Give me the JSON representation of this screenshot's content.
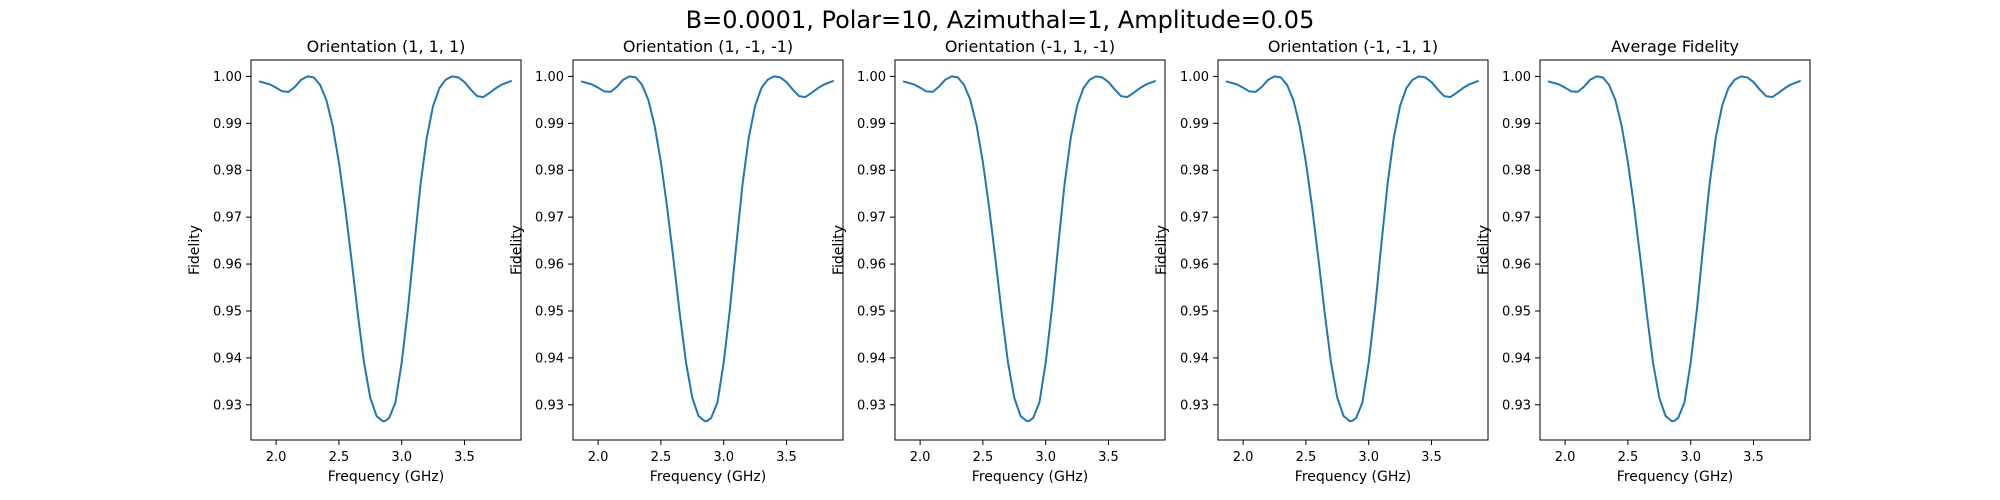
{
  "figure": {
    "suptitle": "B=0.0001, Polar=10, Azimuthal=1, Amplitude=0.05"
  },
  "chart_data": [
    {
      "type": "line",
      "title": "Orientation (1, 1, 1)",
      "xlabel": "Frequency (GHz)",
      "ylabel": "Fidelity",
      "xlim": [
        1.8,
        3.95
      ],
      "ylim": [
        0.9225,
        1.0035
      ],
      "xticks": [
        "2.0",
        "2.5",
        "3.0",
        "3.5"
      ],
      "yticks": [
        "0.93",
        "0.94",
        "0.95",
        "0.96",
        "0.97",
        "0.98",
        "0.99",
        "1.00"
      ],
      "grid": false,
      "color": "#1f77b4",
      "x": [
        1.87,
        1.95,
        2.0,
        2.05,
        2.1,
        2.15,
        2.2,
        2.25,
        2.3,
        2.35,
        2.4,
        2.45,
        2.5,
        2.55,
        2.6,
        2.65,
        2.7,
        2.75,
        2.8,
        2.85,
        2.87,
        2.9,
        2.95,
        3.0,
        3.05,
        3.1,
        3.15,
        3.2,
        3.25,
        3.3,
        3.35,
        3.4,
        3.45,
        3.5,
        3.55,
        3.6,
        3.65,
        3.7,
        3.75,
        3.8,
        3.87
      ],
      "y": [
        0.9989,
        0.9983,
        0.9976,
        0.9968,
        0.9967,
        0.9978,
        0.9993,
        1.0,
        0.9998,
        0.9982,
        0.995,
        0.9895,
        0.9817,
        0.972,
        0.961,
        0.9495,
        0.939,
        0.9315,
        0.9276,
        0.9265,
        0.9266,
        0.9272,
        0.9305,
        0.939,
        0.9505,
        0.964,
        0.977,
        0.987,
        0.9937,
        0.9975,
        0.9993,
        1.0,
        0.9998,
        0.9988,
        0.9972,
        0.9958,
        0.9956,
        0.9965,
        0.9975,
        0.9983,
        0.999
      ]
    },
    {
      "type": "line",
      "title": "Orientation (1, -1, -1)",
      "xlabel": "Frequency (GHz)",
      "ylabel": "Fidelity",
      "xlim": [
        1.8,
        3.95
      ],
      "ylim": [
        0.9225,
        1.0035
      ],
      "xticks": [
        "2.0",
        "2.5",
        "3.0",
        "3.5"
      ],
      "yticks": [
        "0.93",
        "0.94",
        "0.95",
        "0.96",
        "0.97",
        "0.98",
        "0.99",
        "1.00"
      ],
      "grid": false,
      "color": "#1f77b4",
      "x": [
        1.87,
        1.95,
        2.0,
        2.05,
        2.1,
        2.15,
        2.2,
        2.25,
        2.3,
        2.35,
        2.4,
        2.45,
        2.5,
        2.55,
        2.6,
        2.65,
        2.7,
        2.75,
        2.8,
        2.85,
        2.87,
        2.9,
        2.95,
        3.0,
        3.05,
        3.1,
        3.15,
        3.2,
        3.25,
        3.3,
        3.35,
        3.4,
        3.45,
        3.5,
        3.55,
        3.6,
        3.65,
        3.7,
        3.75,
        3.8,
        3.87
      ],
      "y": [
        0.9989,
        0.9983,
        0.9976,
        0.9968,
        0.9967,
        0.9978,
        0.9993,
        1.0,
        0.9998,
        0.9982,
        0.995,
        0.9895,
        0.9817,
        0.972,
        0.961,
        0.9495,
        0.939,
        0.9315,
        0.9276,
        0.9265,
        0.9266,
        0.9272,
        0.9305,
        0.939,
        0.9505,
        0.964,
        0.977,
        0.987,
        0.9937,
        0.9975,
        0.9993,
        1.0,
        0.9998,
        0.9988,
        0.9972,
        0.9958,
        0.9956,
        0.9965,
        0.9975,
        0.9983,
        0.999
      ]
    },
    {
      "type": "line",
      "title": "Orientation (-1, 1, -1)",
      "xlabel": "Frequency (GHz)",
      "ylabel": "Fidelity",
      "xlim": [
        1.8,
        3.95
      ],
      "ylim": [
        0.9225,
        1.0035
      ],
      "xticks": [
        "2.0",
        "2.5",
        "3.0",
        "3.5"
      ],
      "yticks": [
        "0.93",
        "0.94",
        "0.95",
        "0.96",
        "0.97",
        "0.98",
        "0.99",
        "1.00"
      ],
      "grid": false,
      "color": "#1f77b4",
      "x": [
        1.87,
        1.95,
        2.0,
        2.05,
        2.1,
        2.15,
        2.2,
        2.25,
        2.3,
        2.35,
        2.4,
        2.45,
        2.5,
        2.55,
        2.6,
        2.65,
        2.7,
        2.75,
        2.8,
        2.85,
        2.87,
        2.9,
        2.95,
        3.0,
        3.05,
        3.1,
        3.15,
        3.2,
        3.25,
        3.3,
        3.35,
        3.4,
        3.45,
        3.5,
        3.55,
        3.6,
        3.65,
        3.7,
        3.75,
        3.8,
        3.87
      ],
      "y": [
        0.9989,
        0.9983,
        0.9976,
        0.9968,
        0.9967,
        0.9978,
        0.9993,
        1.0,
        0.9998,
        0.9982,
        0.995,
        0.9895,
        0.9817,
        0.972,
        0.961,
        0.9495,
        0.939,
        0.9315,
        0.9276,
        0.9265,
        0.9266,
        0.9272,
        0.9305,
        0.939,
        0.9505,
        0.964,
        0.977,
        0.987,
        0.9937,
        0.9975,
        0.9993,
        1.0,
        0.9998,
        0.9988,
        0.9972,
        0.9958,
        0.9956,
        0.9965,
        0.9975,
        0.9983,
        0.999
      ]
    },
    {
      "type": "line",
      "title": "Orientation (-1, -1, 1)",
      "xlabel": "Frequency (GHz)",
      "ylabel": "Fidelity",
      "xlim": [
        1.8,
        3.95
      ],
      "ylim": [
        0.9225,
        1.0035
      ],
      "xticks": [
        "2.0",
        "2.5",
        "3.0",
        "3.5"
      ],
      "yticks": [
        "0.93",
        "0.94",
        "0.95",
        "0.96",
        "0.97",
        "0.98",
        "0.99",
        "1.00"
      ],
      "grid": false,
      "color": "#1f77b4",
      "x": [
        1.87,
        1.95,
        2.0,
        2.05,
        2.1,
        2.15,
        2.2,
        2.25,
        2.3,
        2.35,
        2.4,
        2.45,
        2.5,
        2.55,
        2.6,
        2.65,
        2.7,
        2.75,
        2.8,
        2.85,
        2.87,
        2.9,
        2.95,
        3.0,
        3.05,
        3.1,
        3.15,
        3.2,
        3.25,
        3.3,
        3.35,
        3.4,
        3.45,
        3.5,
        3.55,
        3.6,
        3.65,
        3.7,
        3.75,
        3.8,
        3.87
      ],
      "y": [
        0.9989,
        0.9983,
        0.9976,
        0.9968,
        0.9967,
        0.9978,
        0.9993,
        1.0,
        0.9998,
        0.9982,
        0.995,
        0.9895,
        0.9817,
        0.972,
        0.961,
        0.9495,
        0.939,
        0.9315,
        0.9276,
        0.9265,
        0.9266,
        0.9272,
        0.9305,
        0.939,
        0.9505,
        0.964,
        0.977,
        0.987,
        0.9937,
        0.9975,
        0.9993,
        1.0,
        0.9998,
        0.9988,
        0.9972,
        0.9958,
        0.9956,
        0.9965,
        0.9975,
        0.9983,
        0.999
      ]
    },
    {
      "type": "line",
      "title": "Average Fidelity",
      "xlabel": "Frequency (GHz)",
      "ylabel": "Fidelity",
      "xlim": [
        1.8,
        3.95
      ],
      "ylim": [
        0.9225,
        1.0035
      ],
      "xticks": [
        "2.0",
        "2.5",
        "3.0",
        "3.5"
      ],
      "yticks": [
        "0.93",
        "0.94",
        "0.95",
        "0.96",
        "0.97",
        "0.98",
        "0.99",
        "1.00"
      ],
      "grid": false,
      "color": "#1f77b4",
      "x": [
        1.87,
        1.95,
        2.0,
        2.05,
        2.1,
        2.15,
        2.2,
        2.25,
        2.3,
        2.35,
        2.4,
        2.45,
        2.5,
        2.55,
        2.6,
        2.65,
        2.7,
        2.75,
        2.8,
        2.85,
        2.87,
        2.9,
        2.95,
        3.0,
        3.05,
        3.1,
        3.15,
        3.2,
        3.25,
        3.3,
        3.35,
        3.4,
        3.45,
        3.5,
        3.55,
        3.6,
        3.65,
        3.7,
        3.75,
        3.8,
        3.87
      ],
      "y": [
        0.9989,
        0.9983,
        0.9976,
        0.9968,
        0.9967,
        0.9978,
        0.9993,
        1.0,
        0.9998,
        0.9982,
        0.995,
        0.9895,
        0.9817,
        0.972,
        0.961,
        0.9495,
        0.939,
        0.9315,
        0.9276,
        0.9265,
        0.9266,
        0.9272,
        0.9305,
        0.939,
        0.9505,
        0.964,
        0.977,
        0.987,
        0.9937,
        0.9975,
        0.9993,
        1.0,
        0.9998,
        0.9988,
        0.9972,
        0.9958,
        0.9956,
        0.9965,
        0.9975,
        0.9983,
        0.999
      ]
    }
  ]
}
